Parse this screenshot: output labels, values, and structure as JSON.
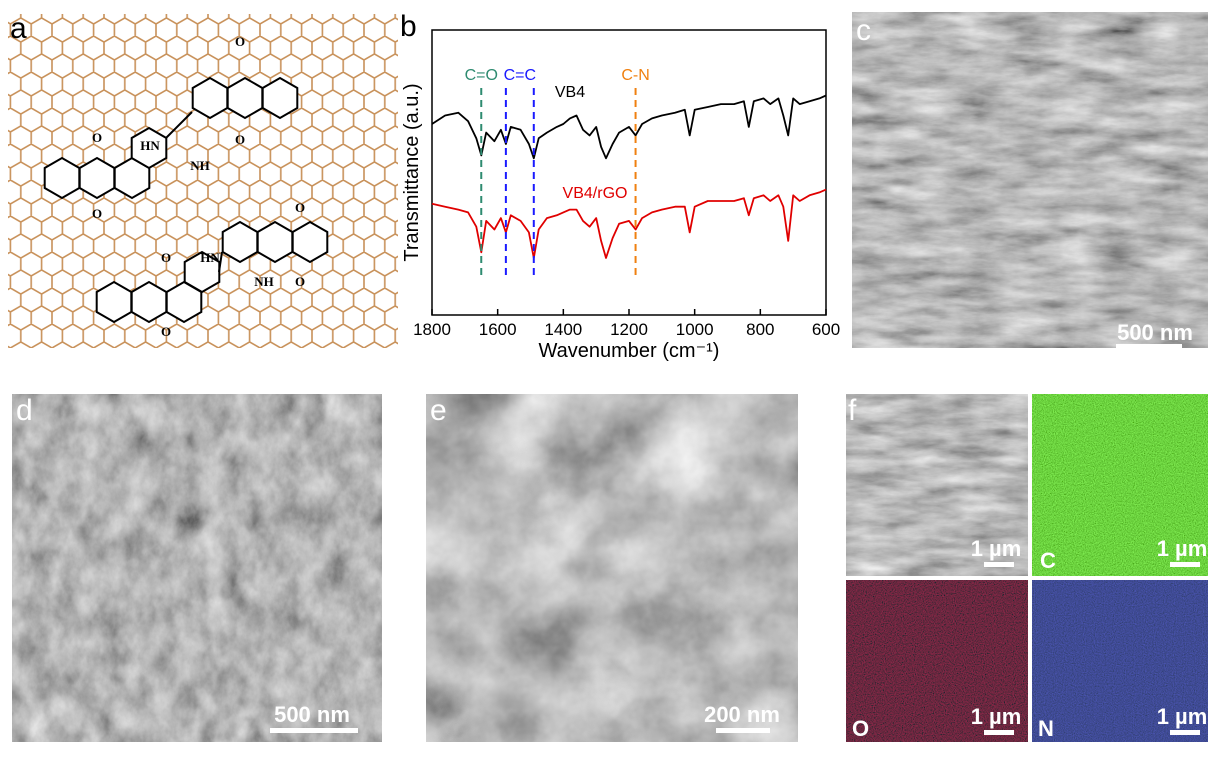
{
  "figure": {
    "panels": [
      {
        "label": "a"
      },
      {
        "label": "b"
      },
      {
        "label": "c",
        "scale_bar": "500 nm"
      },
      {
        "label": "d",
        "scale_bar": "500 nm"
      },
      {
        "label": "e",
        "scale_bar": "200 nm"
      },
      {
        "label": "f",
        "maps": [
          {
            "scale_bar": "1 µm"
          },
          {
            "element": "C",
            "scale_bar": "1 µm"
          },
          {
            "element": "O",
            "scale_bar": "1 µm"
          },
          {
            "element": "N",
            "scale_bar": "1 µm"
          }
        ]
      }
    ],
    "molecule_labels": [
      "O",
      "HN",
      "NH",
      "O",
      "O",
      "O",
      "O",
      "HN",
      "NH",
      "O",
      "O",
      "O"
    ]
  },
  "chart_data": {
    "type": "line",
    "xlabel": "Wavenumber (cm⁻¹)",
    "ylabel": "Transmittance (a.u.)",
    "x": [
      1800,
      1760,
      1720,
      1690,
      1665,
      1650,
      1635,
      1610,
      1590,
      1575,
      1560,
      1530,
      1505,
      1490,
      1475,
      1450,
      1420,
      1400,
      1380,
      1360,
      1340,
      1320,
      1300,
      1285,
      1270,
      1250,
      1230,
      1200,
      1180,
      1160,
      1130,
      1100,
      1060,
      1030,
      1015,
      1000,
      960,
      920,
      880,
      850,
      835,
      820,
      790,
      770,
      745,
      730,
      715,
      700,
      680,
      650,
      620,
      600
    ],
    "series": [
      {
        "name": "VB4",
        "color": "#000000",
        "values": [
          67,
          70,
          71,
          68,
          62,
          56,
          64,
          61,
          65,
          60,
          66,
          65,
          60,
          55,
          62,
          64,
          66,
          67,
          69,
          70,
          65,
          63,
          66,
          59,
          55,
          60,
          64,
          66,
          63,
          67,
          69,
          70,
          71,
          72,
          63,
          72,
          73,
          74,
          74,
          75,
          66,
          75,
          76,
          74,
          76,
          70,
          63,
          76,
          74,
          75,
          76,
          77
        ]
      },
      {
        "name": "VB4/rGO",
        "color": "#e00000",
        "values": [
          39,
          38,
          37,
          36,
          31,
          22,
          33,
          30,
          34,
          29,
          35,
          33,
          29,
          20,
          30,
          34,
          35,
          36,
          37,
          37,
          33,
          31,
          34,
          26,
          20,
          27,
          32,
          33,
          30,
          34,
          36,
          37,
          38,
          38,
          29,
          38,
          40,
          40,
          40,
          41,
          35,
          41,
          42,
          40,
          42,
          38,
          26,
          42,
          40,
          42,
          43,
          44
        ]
      }
    ],
    "markers": [
      {
        "label": "C=O",
        "x": [
          1650
        ],
        "color": "#2e8b70"
      },
      {
        "label": "C=C",
        "x": [
          1575,
          1490
        ],
        "color": "#1a1aff"
      },
      {
        "label": "C-N",
        "x": [
          1180
        ],
        "color": "#f08010"
      }
    ],
    "xlim": [
      1800,
      600
    ],
    "ylim": [
      0,
      100
    ],
    "xticks": [
      1800,
      1600,
      1400,
      1200,
      1000,
      800,
      600
    ]
  }
}
